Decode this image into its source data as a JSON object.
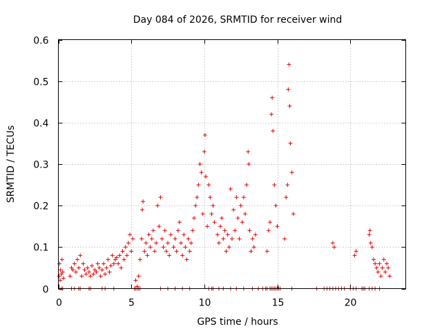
{
  "chart_data": {
    "type": "scatter",
    "title": "Day 084 of 2026, SRMTID for receiver wind",
    "xlabel": "GPS time / hours",
    "ylabel": "SRMTID / TECUs",
    "xlim": [
      0,
      23.8
    ],
    "ylim": [
      0,
      0.6
    ],
    "xticks": [
      0,
      5,
      10,
      15,
      20
    ],
    "xtick_labels": [
      "0",
      "5",
      "10",
      "15",
      "20"
    ],
    "yticks": [
      0,
      0.1,
      0.2,
      0.3,
      0.4,
      0.5,
      0.6
    ],
    "ytick_labels": [
      "0",
      "0.1",
      "0.2",
      "0.3",
      "0.4",
      "0.5",
      "0.6"
    ],
    "grid": true,
    "marker": "+",
    "series": [
      {
        "name": "SRMTID",
        "color": "#e00000",
        "points": [
          [
            0.05,
            0.03
          ],
          [
            0.08,
            0.06
          ],
          [
            0.12,
            0.02
          ],
          [
            0.15,
            0.045
          ],
          [
            0.2,
            0.035
          ],
          [
            0.25,
            0.07
          ],
          [
            0.3,
            0.04
          ],
          [
            0.35,
            0.025
          ],
          [
            0.8,
            0.03
          ],
          [
            0.9,
            0.05
          ],
          [
            1.0,
            0.045
          ],
          [
            1.1,
            0.06
          ],
          [
            1.2,
            0.04
          ],
          [
            1.3,
            0.07
          ],
          [
            1.4,
            0.05
          ],
          [
            1.5,
            0.08
          ],
          [
            1.6,
            0.03
          ],
          [
            1.7,
            0.06
          ],
          [
            1.8,
            0.045
          ],
          [
            1.9,
            0.035
          ],
          [
            2.0,
            0.05
          ],
          [
            2.1,
            0.04
          ],
          [
            2.2,
            0.03
          ],
          [
            2.3,
            0.055
          ],
          [
            2.4,
            0.035
          ],
          [
            2.5,
            0.045
          ],
          [
            2.6,
            0.04
          ],
          [
            2.7,
            0.06
          ],
          [
            2.8,
            0.05
          ],
          [
            2.9,
            0.03
          ],
          [
            3.0,
            0.045
          ],
          [
            3.1,
            0.06
          ],
          [
            3.2,
            0.035
          ],
          [
            3.3,
            0.05
          ],
          [
            3.4,
            0.07
          ],
          [
            3.5,
            0.04
          ],
          [
            3.6,
            0.055
          ],
          [
            3.7,
            0.08
          ],
          [
            3.8,
            0.06
          ],
          [
            3.9,
            0.07
          ],
          [
            4.0,
            0.075
          ],
          [
            4.1,
            0.06
          ],
          [
            4.2,
            0.08
          ],
          [
            4.3,
            0.05
          ],
          [
            4.4,
            0.09
          ],
          [
            4.5,
            0.07
          ],
          [
            4.6,
            0.1
          ],
          [
            4.7,
            0.08
          ],
          [
            4.8,
            0.11
          ],
          [
            4.9,
            0.13
          ],
          [
            5.0,
            0.09
          ],
          [
            5.1,
            0.12
          ],
          [
            5.3,
            0.02
          ],
          [
            5.4,
            0.005
          ],
          [
            5.5,
            0.03
          ],
          [
            5.6,
            0.07
          ],
          [
            5.7,
            0.12
          ],
          [
            5.75,
            0.19
          ],
          [
            5.8,
            0.21
          ],
          [
            5.9,
            0.09
          ],
          [
            6.0,
            0.11
          ],
          [
            6.1,
            0.08
          ],
          [
            6.2,
            0.13
          ],
          [
            6.3,
            0.1
          ],
          [
            6.4,
            0.12
          ],
          [
            6.5,
            0.14
          ],
          [
            6.6,
            0.09
          ],
          [
            6.7,
            0.11
          ],
          [
            6.8,
            0.2
          ],
          [
            6.9,
            0.15
          ],
          [
            7.0,
            0.22
          ],
          [
            7.1,
            0.12
          ],
          [
            7.2,
            0.1
          ],
          [
            7.3,
            0.14
          ],
          [
            7.4,
            0.09
          ],
          [
            7.5,
            0.11
          ],
          [
            7.6,
            0.08
          ],
          [
            7.7,
            0.13
          ],
          [
            7.9,
            0.1
          ],
          [
            8.0,
            0.12
          ],
          [
            8.1,
            0.09
          ],
          [
            8.2,
            0.14
          ],
          [
            8.3,
            0.16
          ],
          [
            8.4,
            0.11
          ],
          [
            8.5,
            0.08
          ],
          [
            8.6,
            0.13
          ],
          [
            8.7,
            0.1
          ],
          [
            8.8,
            0.07
          ],
          [
            8.9,
            0.12
          ],
          [
            9.0,
            0.09
          ],
          [
            9.1,
            0.11
          ],
          [
            9.2,
            0.14
          ],
          [
            9.3,
            0.17
          ],
          [
            9.4,
            0.2
          ],
          [
            9.5,
            0.22
          ],
          [
            9.6,
            0.25
          ],
          [
            9.7,
            0.3
          ],
          [
            9.8,
            0.28
          ],
          [
            9.9,
            0.18
          ],
          [
            10.0,
            0.33
          ],
          [
            10.05,
            0.37
          ],
          [
            10.1,
            0.27
          ],
          [
            10.2,
            0.15
          ],
          [
            10.3,
            0.25
          ],
          [
            10.4,
            0.22
          ],
          [
            10.5,
            0.18
          ],
          [
            10.6,
            0.2
          ],
          [
            10.7,
            0.16
          ],
          [
            10.9,
            0.13
          ],
          [
            11.0,
            0.11
          ],
          [
            11.1,
            0.15
          ],
          [
            11.2,
            0.17
          ],
          [
            11.3,
            0.12
          ],
          [
            11.4,
            0.14
          ],
          [
            11.5,
            0.09
          ],
          [
            11.6,
            0.13
          ],
          [
            11.7,
            0.1
          ],
          [
            11.8,
            0.24
          ],
          [
            11.9,
            0.12
          ],
          [
            12.0,
            0.19
          ],
          [
            12.1,
            0.14
          ],
          [
            12.2,
            0.22
          ],
          [
            12.3,
            0.17
          ],
          [
            12.4,
            0.12
          ],
          [
            12.5,
            0.2
          ],
          [
            12.6,
            0.16
          ],
          [
            12.7,
            0.22
          ],
          [
            12.8,
            0.18
          ],
          [
            12.9,
            0.25
          ],
          [
            13.0,
            0.33
          ],
          [
            13.05,
            0.3
          ],
          [
            13.1,
            0.14
          ],
          [
            13.2,
            0.09
          ],
          [
            13.3,
            0.12
          ],
          [
            13.4,
            0.1
          ],
          [
            13.5,
            0.13
          ],
          [
            14.3,
            0.09
          ],
          [
            14.4,
            0.14
          ],
          [
            14.5,
            0.16
          ],
          [
            14.6,
            0.42
          ],
          [
            14.65,
            0.46
          ],
          [
            14.7,
            0.38
          ],
          [
            14.8,
            0.25
          ],
          [
            14.9,
            0.2
          ],
          [
            15.0,
            0.15
          ],
          [
            15.5,
            0.12
          ],
          [
            15.6,
            0.22
          ],
          [
            15.7,
            0.25
          ],
          [
            15.75,
            0.48
          ],
          [
            15.8,
            0.54
          ],
          [
            15.85,
            0.44
          ],
          [
            15.9,
            0.35
          ],
          [
            16.0,
            0.28
          ],
          [
            16.1,
            0.18
          ],
          [
            18.8,
            0.11
          ],
          [
            18.9,
            0.1
          ],
          [
            20.3,
            0.08
          ],
          [
            20.4,
            0.09
          ],
          [
            21.3,
            0.13
          ],
          [
            21.35,
            0.14
          ],
          [
            21.4,
            0.11
          ],
          [
            21.5,
            0.1
          ],
          [
            21.6,
            0.07
          ],
          [
            21.7,
            0.06
          ],
          [
            21.8,
            0.05
          ],
          [
            21.9,
            0.04
          ],
          [
            22.0,
            0.06
          ],
          [
            22.1,
            0.03
          ],
          [
            22.2,
            0.05
          ],
          [
            22.3,
            0.07
          ],
          [
            22.4,
            0.04
          ],
          [
            22.5,
            0.06
          ],
          [
            22.6,
            0.05
          ],
          [
            22.7,
            0.03
          ]
        ],
        "zero_points_x": [
          0.2,
          0.3,
          0.9,
          1.1,
          1.4,
          1.5,
          2.1,
          2.2,
          3.0,
          3.2,
          3.8,
          5.2,
          5.3,
          5.4,
          5.5,
          5.6,
          7.0,
          7.5,
          8.0,
          8.5,
          9.0,
          10.3,
          10.5,
          10.6,
          11.0,
          11.3,
          11.8,
          12.2,
          12.7,
          13.3,
          13.7,
          14.0,
          14.2,
          14.3,
          14.5,
          14.6,
          14.7,
          14.8,
          14.9,
          15.0,
          15.1,
          15.2,
          16.0,
          17.7,
          18.2,
          18.4,
          18.6,
          18.8,
          19.0,
          19.2,
          19.4,
          19.6,
          20.0,
          20.2,
          20.4,
          20.8,
          20.9,
          21.0,
          21.3,
          21.5,
          21.7,
          22.0
        ]
      }
    ]
  }
}
